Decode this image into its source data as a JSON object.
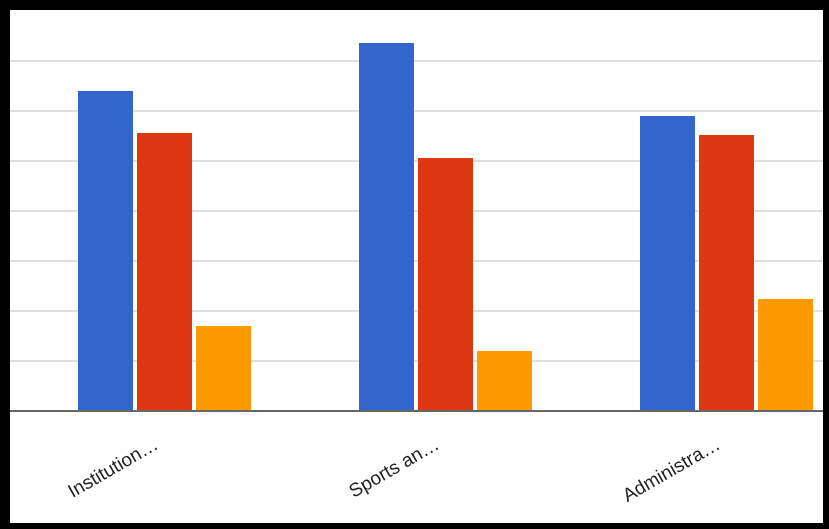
{
  "colors": {
    "series": [
      "#3366cc",
      "#dc3912",
      "#ff9900"
    ],
    "grid": "#e0e0e0",
    "axis": "#666666"
  },
  "chart_data": {
    "type": "bar",
    "categories": [
      "Institution…",
      "Sports an…",
      "Administra…"
    ],
    "series": [
      {
        "values": [
          32,
          36.8,
          29.5
        ]
      },
      {
        "values": [
          27.8,
          25.3,
          27.6
        ]
      },
      {
        "values": [
          8.5,
          6,
          11.2
        ]
      }
    ],
    "ylim": [
      0,
      40
    ],
    "grid_step": 5,
    "grid": true,
    "legend": "none"
  }
}
